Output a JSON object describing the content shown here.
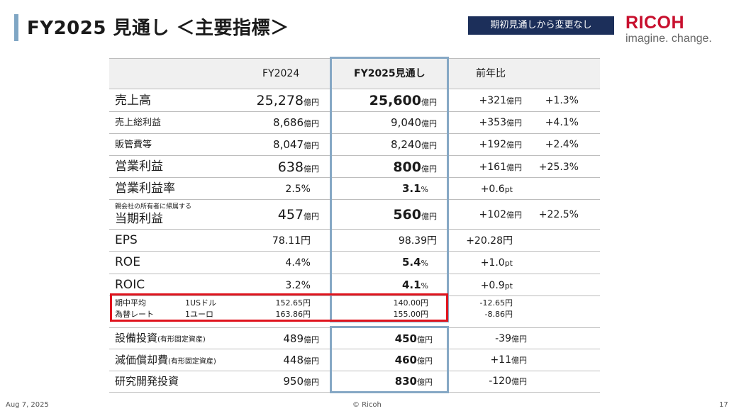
{
  "header": {
    "title": "FY2025 見通し ＜主要指標＞",
    "badge": "期初見通しから変更なし",
    "logo_main": "RICOH",
    "logo_sub": "imagine. change."
  },
  "columns": {
    "fy2024": "FY2024",
    "fy2025": "FY2025見通し",
    "yoy": "前年比"
  },
  "rows": [
    {
      "label": "売上高",
      "fy2024": "25,278",
      "fy2024_unit": "億円",
      "fy2025": "25,600",
      "fy2025_unit": "億円",
      "diff": "+321",
      "diff_unit": "億円",
      "pct": "+1.3%"
    },
    {
      "label": "売上総利益",
      "fy2024": "8,686",
      "fy2024_unit": "億円",
      "fy2025": "9,040",
      "fy2025_unit": "億円",
      "diff": "+353",
      "diff_unit": "億円",
      "pct": "+4.1%"
    },
    {
      "label": "販管費等",
      "fy2024": "8,047",
      "fy2024_unit": "億円",
      "fy2025": "8,240",
      "fy2025_unit": "億円",
      "diff": "+192",
      "diff_unit": "億円",
      "pct": "+2.4%"
    },
    {
      "label": "営業利益",
      "fy2024": "638",
      "fy2024_unit": "億円",
      "fy2025": "800",
      "fy2025_unit": "億円",
      "diff": "+161",
      "diff_unit": "億円",
      "pct": "+25.3%"
    },
    {
      "label": "営業利益率",
      "fy2024": "2.5%",
      "fy2025": "3.1",
      "fy2025_unit": "%",
      "diff": "+0.6",
      "diff_unit": "pt"
    },
    {
      "label_small": "親会社の所有者に帰属する",
      "label": "当期利益",
      "fy2024": "457",
      "fy2024_unit": "億円",
      "fy2025": "560",
      "fy2025_unit": "億円",
      "diff": "+102",
      "diff_unit": "億円",
      "pct": "+22.5%"
    },
    {
      "label": "EPS",
      "fy2024": "78.11円",
      "fy2025": "98.39円",
      "diff": "+20.28円"
    },
    {
      "label": "ROE",
      "fy2024": "4.4%",
      "fy2025": "5.4",
      "fy2025_unit": "%",
      "diff": "+1.0",
      "diff_unit": "pt"
    },
    {
      "label": "ROIC",
      "fy2024": "3.2%",
      "fy2025": "4.1",
      "fy2025_unit": "%",
      "diff": "+0.9",
      "diff_unit": "pt"
    }
  ],
  "fx": {
    "label1": "期中平均",
    "label2": "為替レート",
    "usd": "1USドル",
    "eur": "1ユーロ",
    "usd_fy2024": "152.65円",
    "usd_fy2025": "140.00円",
    "usd_diff": "-12.65円",
    "eur_fy2024": "163.86円",
    "eur_fy2025": "155.00円",
    "eur_diff": "-8.86円"
  },
  "lower": [
    {
      "label": "設備投資",
      "label_note": "(有形固定資産)",
      "fy2024": "489",
      "fy2024_unit": "億円",
      "fy2025": "450",
      "fy2025_unit": "億円",
      "diff": "-39",
      "diff_unit": "億円"
    },
    {
      "label": "減価償却費",
      "label_note": "(有形固定資産)",
      "fy2024": "448",
      "fy2024_unit": "億円",
      "fy2025": "460",
      "fy2025_unit": "億円",
      "diff": "+11",
      "diff_unit": "億円"
    },
    {
      "label": "研究開発投資",
      "fy2024": "950",
      "fy2024_unit": "億円",
      "fy2025": "830",
      "fy2025_unit": "億円",
      "diff": "-120",
      "diff_unit": "億円"
    }
  ],
  "footer": {
    "date": "Aug 7, 2025",
    "copyright": "© Ricoh",
    "page": "17"
  }
}
